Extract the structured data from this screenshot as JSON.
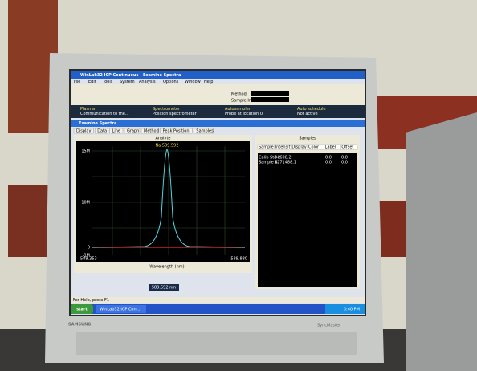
{
  "window": {
    "title": "WinLab32 ICP Continuous - Examine Spectra",
    "menu": [
      "File",
      "Edit",
      "Tools",
      "System",
      "Analysis",
      "Options",
      "Window",
      "Help"
    ]
  },
  "toolbar": {
    "method_label": "Method",
    "sample_label": "Sample Info",
    "panels": [
      {
        "title": "Plasma",
        "status": "Communication to the..."
      },
      {
        "title": "Spectrometer",
        "status": "Position spectrometer"
      },
      {
        "title": "Autosampler",
        "status": "Probe at location 0"
      },
      {
        "title": "Auto schedule",
        "status": "Not active"
      }
    ]
  },
  "child": {
    "title": "Examine Spectra",
    "tabs": [
      "Display",
      "Data",
      "Line",
      "Graph",
      "Method",
      "Peak Position",
      "Samples"
    ]
  },
  "analyte": {
    "header": "Analyte",
    "peak_label": "Na 589.592",
    "y_top": "15M",
    "y_mid": "10M",
    "y_zero": "0",
    "y_bottom": "-1M",
    "x_left": "589.353",
    "x_right": "589.880",
    "x_label": "Wavelength (nm)",
    "wavelength_box": "589.592 nm"
  },
  "samples": {
    "header": "Samples",
    "columns": [
      "Sample ID",
      "Intensity",
      "Display",
      "Color",
      "Label",
      "Offset"
    ],
    "rows": [
      [
        "Calib Std 2",
        "94698.2",
        "0.0",
        "0.0"
      ],
      [
        "Sample 4",
        "1271488.1",
        "0.0",
        "0.0"
      ]
    ]
  },
  "status": "For Help, press F1",
  "taskbar": {
    "start": "start",
    "task": "WinLab32 ICP Con...",
    "clock": "3:40 PM"
  },
  "monitor": {
    "brand": "SAMSUNG",
    "model": "SyncMaster"
  }
}
